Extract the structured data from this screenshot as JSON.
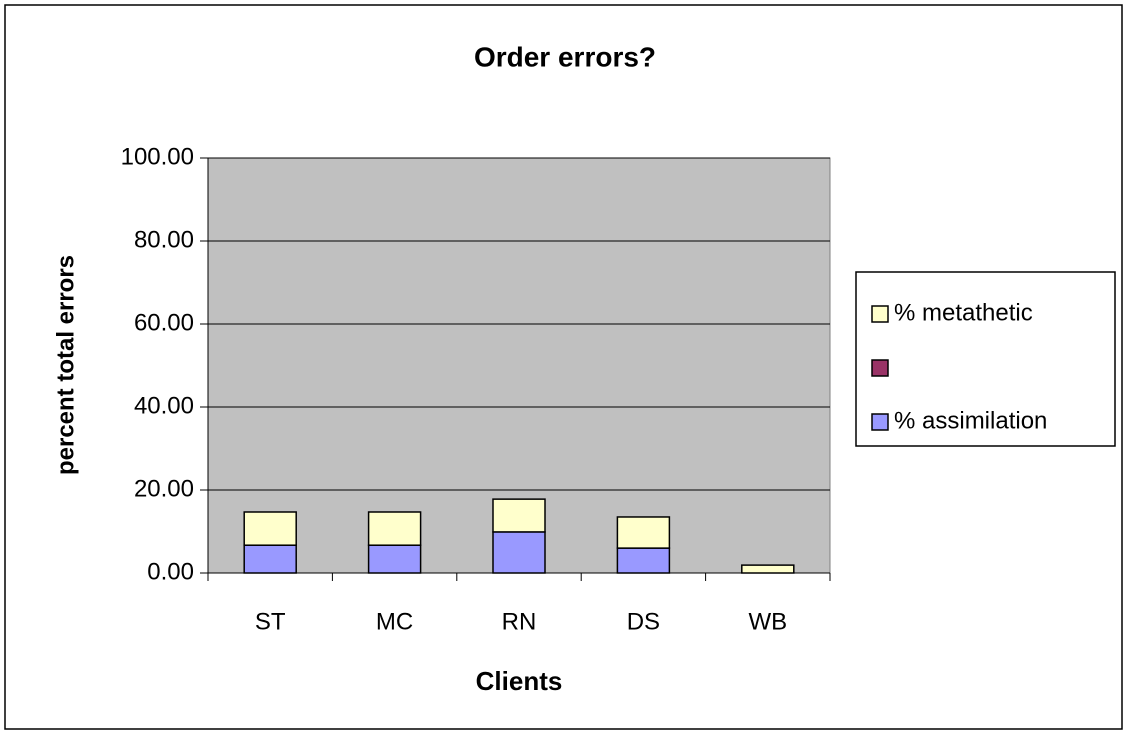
{
  "chart_data": {
    "type": "stacked_bar",
    "title": "Order errors?",
    "x_label": "Clients",
    "y_label": "percent total errors",
    "categories": [
      "ST",
      "MC",
      "RN",
      "DS",
      "WB"
    ],
    "series": [
      {
        "name": "% assimilation",
        "color": "#9999ff",
        "values": [
          6.7,
          6.7,
          9.9,
          6.0,
          0
        ]
      },
      {
        "color": "#993366",
        "values": [
          0,
          0,
          0,
          0,
          0
        ]
      },
      {
        "name": "% metathetic",
        "color": "#ffffcc",
        "values": [
          8.0,
          8.0,
          7.9,
          7.5,
          1.9
        ]
      }
    ],
    "ylim": [
      0,
      100
    ],
    "yticks": [
      {
        "value": 0,
        "label": "0.00"
      },
      {
        "value": 20,
        "label": "20.00"
      },
      {
        "value": 40,
        "label": "40.00"
      },
      {
        "value": 60,
        "label": "60.00"
      },
      {
        "value": 80,
        "label": "80.00"
      },
      {
        "value": 100,
        "label": "100.00"
      }
    ],
    "grid": true,
    "plot_background": "#c0c0c0",
    "legend": "right"
  }
}
